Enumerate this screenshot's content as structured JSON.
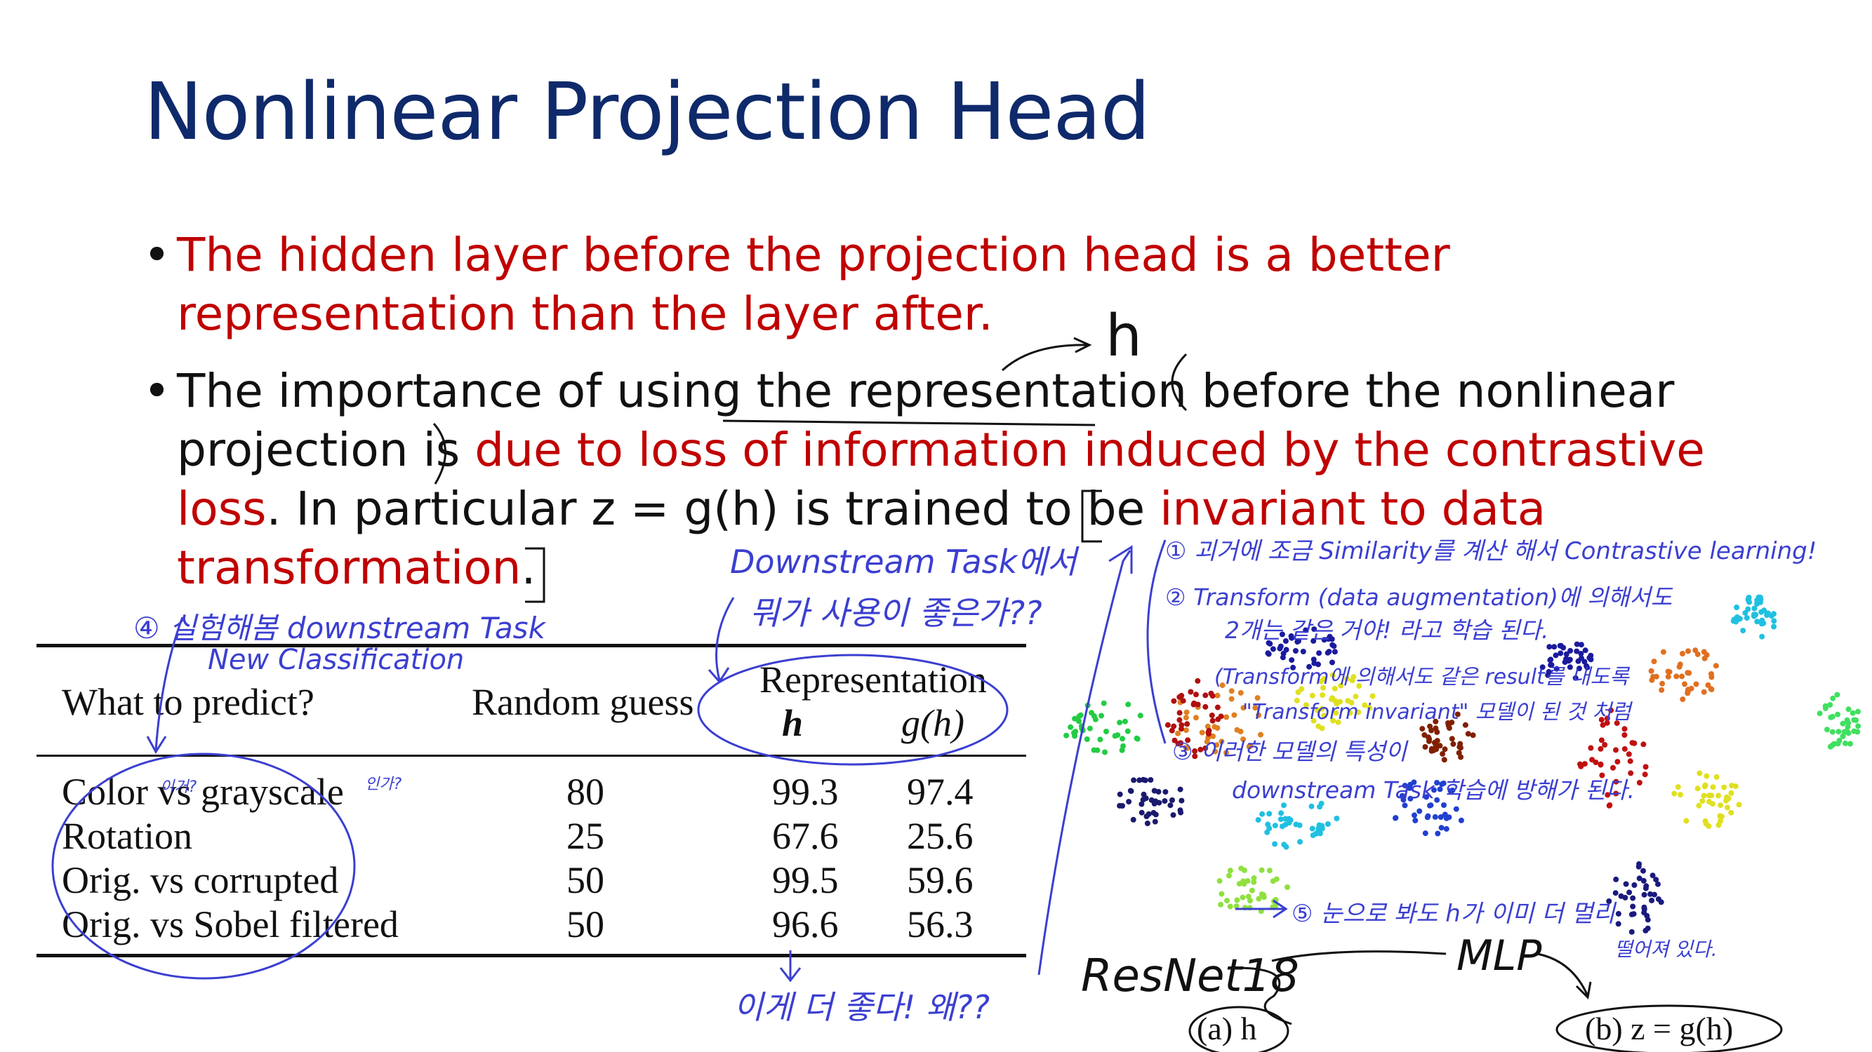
{
  "slide": {
    "title": "Nonlinear Projection Head",
    "bullet1": "The hidden layer before the projection head is a better representation than the layer after.",
    "bullet2": {
      "part1": "The importance of using the representation before the nonlinear projection is ",
      "red1": "due to loss of information induced by the contrastive loss",
      "part2": ". In particular z = g(h) is trained to be ",
      "red2": "invariant to data transformation",
      "part3": "."
    }
  },
  "table": {
    "headers": {
      "what": "What to predict?",
      "random": "Random guess",
      "representation": "Representation",
      "h": "h",
      "gh": "g(h)"
    },
    "rows": [
      {
        "name": "Color vs grayscale",
        "random": "80",
        "h": "99.3",
        "gh": "97.4"
      },
      {
        "name": "Rotation",
        "random": "25",
        "h": "67.6",
        "gh": "25.6"
      },
      {
        "name": "Orig. vs corrupted",
        "random": "50",
        "h": "99.5",
        "gh": "59.6"
      },
      {
        "name": "Orig. vs Sobel filtered",
        "random": "50",
        "h": "96.6",
        "gh": "56.3"
      }
    ]
  },
  "figure": {
    "caption_a": "(a) h",
    "caption_b": "(b) z = g(h)"
  },
  "annotations": {
    "h_arrow": "h",
    "downstream_q1": "Downstream Task에서",
    "downstream_q2": "뭐가 사용이 좋은가??",
    "note4a": "④ 실험해봄 downstream Task",
    "note4b": "New Classification",
    "color_q": "이거?",
    "gray_q": "인가?",
    "better": "이게 더 좋다! 왜??",
    "note1": "① 괴거에 조금 Similarity를 계산 해서 Contrastive learning!",
    "note2a": "② Transform (data augmentation)에 의해서도",
    "note2b": "2개는 같은 거야! 라고 학습 된다.",
    "note2c": "(Transform에 의해서도 같은 result를 내도록",
    "note2d": "\"Transform invariant\" 모델이 된 것 처럼",
    "note3a": "③ 이러한 모델의 특성이",
    "note3b": "downstream Task 학습에 방해가 된다.",
    "note5a": "⑤ 눈으로 봐도 h가 이미 더 멀리",
    "note5b": "떨어져 있다.",
    "resnet": "ResNet18",
    "mlp": "MLP"
  },
  "colors": {
    "title": "#0f2a6b",
    "emphasis": "#c00000",
    "ink": "#3b3fd0"
  }
}
